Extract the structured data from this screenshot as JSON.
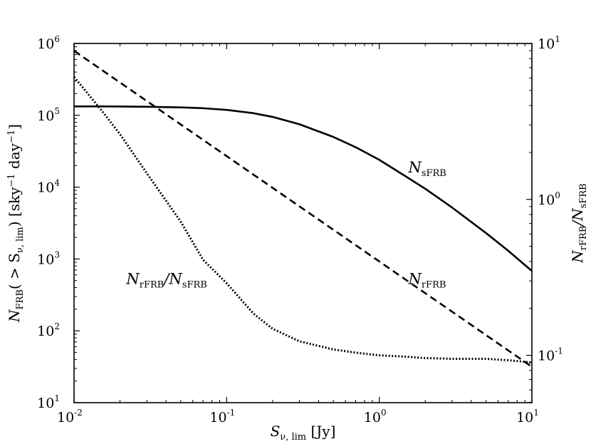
{
  "chart_data": {
    "type": "line",
    "x_scale": "log",
    "y_scale": "log",
    "y2_scale": "log",
    "xlim": [
      0.01,
      10
    ],
    "ylim": [
      10,
      1000000
    ],
    "y2lim": [
      0.0497,
      10
    ],
    "grid": false,
    "legend": "none",
    "x_ticks": [
      {
        "base": "10",
        "exp": "-2",
        "value": 0.01
      },
      {
        "base": "10",
        "exp": "-1",
        "value": 0.1
      },
      {
        "base": "10",
        "exp": "0",
        "value": 1
      },
      {
        "base": "10",
        "exp": "1",
        "value": 10
      }
    ],
    "y_ticks": [
      {
        "base": "10",
        "exp": "1",
        "value": 10
      },
      {
        "base": "10",
        "exp": "2",
        "value": 100
      },
      {
        "base": "10",
        "exp": "3",
        "value": 1000
      },
      {
        "base": "10",
        "exp": "4",
        "value": 10000
      },
      {
        "base": "10",
        "exp": "5",
        "value": 100000
      },
      {
        "base": "10",
        "exp": "6",
        "value": 1000000
      }
    ],
    "y2_ticks": [
      {
        "base": "10",
        "exp": "-1",
        "value": 0.1
      },
      {
        "base": "10",
        "exp": "0",
        "value": 1
      },
      {
        "base": "10",
        "exp": "1",
        "value": 10
      }
    ],
    "xlabel": {
      "main": "S",
      "sub": "ν, lim",
      "rest": " [Jy]"
    },
    "ylabel": {
      "main": "N",
      "sub": "FRB",
      "rest1": "( > S",
      "sub2": "ν, lim",
      "rest2": ") [sky",
      "sup1": "−1",
      "rest3": " day",
      "sup2": "−1",
      "rest4": "]"
    },
    "y2label": {
      "main1": "N",
      "sub1": "rFRB",
      "mid": "/N",
      "sub2": "sFRB"
    },
    "series": [
      {
        "key": "sFRB",
        "axis": "left",
        "style": "solid",
        "x": [
          0.01,
          0.015,
          0.02,
          0.03,
          0.05,
          0.07,
          0.1,
          0.15,
          0.2,
          0.3,
          0.5,
          0.7,
          1,
          1.5,
          2,
          3,
          5,
          7,
          10
        ],
        "y": [
          133000,
          133000,
          132500,
          131500,
          129000,
          125500,
          119000,
          107000,
          95000,
          75000,
          50000,
          36000,
          24000,
          14000,
          9500,
          5200,
          2300,
          1300,
          680
        ]
      },
      {
        "key": "rFRB",
        "axis": "left",
        "style": "dashed",
        "x": [
          0.01,
          10
        ],
        "y": [
          790000,
          31.6
        ]
      },
      {
        "key": "ratio",
        "axis": "right",
        "style": "dotted",
        "x": [
          0.01,
          0.015,
          0.02,
          0.03,
          0.05,
          0.07,
          0.1,
          0.15,
          0.2,
          0.3,
          0.5,
          0.7,
          1,
          1.5,
          2,
          3,
          5,
          7,
          10
        ],
        "y": [
          6.1,
          3.77,
          2.62,
          1.47,
          0.72,
          0.41,
          0.29,
          0.185,
          0.148,
          0.123,
          0.109,
          0.104,
          0.1,
          0.098,
          0.096,
          0.095,
          0.095,
          0.093,
          0.09
        ]
      }
    ],
    "annotations": [
      {
        "key": "ann_sfrb",
        "main": "N",
        "sub": "sFRB",
        "x": 1.55,
        "y": 16000
      },
      {
        "key": "ann_rfrb",
        "main": "N",
        "sub": "rFRB",
        "x": 1.55,
        "y": 450
      },
      {
        "key": "ann_ratio",
        "main1": "N",
        "sub1": "rFRB",
        "mid": "/N",
        "sub2": "sFRB",
        "x": 0.022,
        "y": 450
      }
    ]
  }
}
